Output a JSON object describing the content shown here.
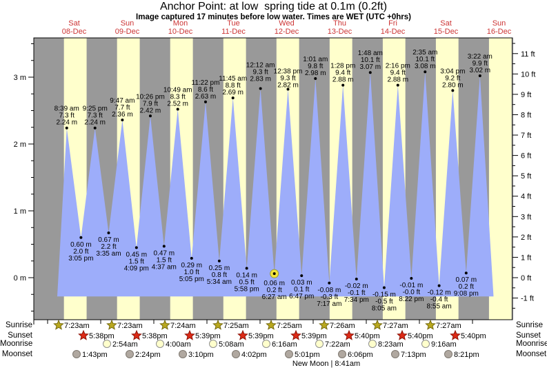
{
  "chart_data": {
    "type": "area",
    "title": "Anchor Point: at low  spring tide at 0.1m (0.2ft)",
    "subtitle": "Image captured 17 minutes before low water. Times are WET (UTC +0hrs)",
    "y_axis_left_unit": "m",
    "y_axis_right_unit": "ft",
    "y_ticks_m": [
      0,
      1,
      2,
      3
    ],
    "y_ticks_ft": [
      -1,
      0,
      1,
      2,
      3,
      4,
      5,
      6,
      7,
      8,
      9,
      10,
      11
    ],
    "ylim_m": [
      -0.65,
      3.55
    ],
    "grid": false,
    "days": [
      {
        "name": "Sat",
        "date": "08-Dec"
      },
      {
        "name": "Sun",
        "date": "09-Dec"
      },
      {
        "name": "Mon",
        "date": "10-Dec"
      },
      {
        "name": "Tue",
        "date": "11-Dec"
      },
      {
        "name": "Wed",
        "date": "12-Dec"
      },
      {
        "name": "Thu",
        "date": "13-Dec"
      },
      {
        "name": "Fri",
        "date": "14-Dec"
      },
      {
        "name": "Sat",
        "date": "15-Dec"
      },
      {
        "name": "Sun",
        "date": "16-Dec"
      }
    ],
    "tide_events": [
      {
        "type": "high",
        "hour": 8.65,
        "height_m": 2.24,
        "time": "8:39 am",
        "ft": "7.3 ft",
        "m": "2.24 m"
      },
      {
        "type": "low",
        "hour": 15.08,
        "height_m": 0.6,
        "time": "3:05 pm",
        "ft": "2.0 ft",
        "m": "0.60 m"
      },
      {
        "type": "high",
        "hour": 21.42,
        "height_m": 2.24,
        "time": "9:25 pm",
        "ft": "7.3 ft",
        "m": "2.24 m"
      },
      {
        "type": "low",
        "hour": 27.58,
        "height_m": 0.67,
        "time": "3:35 am",
        "ft": "2.2 ft",
        "m": "0.67 m"
      },
      {
        "type": "high",
        "hour": 33.78,
        "height_m": 2.36,
        "time": "9:47 am",
        "ft": "7.7 ft",
        "m": "2.36 m"
      },
      {
        "type": "low",
        "hour": 40.15,
        "height_m": 0.45,
        "time": "4:09 pm",
        "ft": "1.5 ft",
        "m": "0.45 m"
      },
      {
        "type": "high",
        "hour": 46.43,
        "height_m": 2.42,
        "time": "10:26 pm",
        "ft": "7.9 ft",
        "m": "2.42 m"
      },
      {
        "type": "low",
        "hour": 52.62,
        "height_m": 0.47,
        "time": "4:37 am",
        "ft": "1.5 ft",
        "m": "0.47 m"
      },
      {
        "type": "high",
        "hour": 58.82,
        "height_m": 2.52,
        "time": "10:49 am",
        "ft": "8.3 ft",
        "m": "2.52 m"
      },
      {
        "type": "low",
        "hour": 65.08,
        "height_m": 0.29,
        "time": "5:05 pm",
        "ft": "1.0 ft",
        "m": "0.29 m"
      },
      {
        "type": "high",
        "hour": 71.37,
        "height_m": 2.63,
        "time": "11:22 pm",
        "ft": "8.6 ft",
        "m": "2.63 m"
      },
      {
        "type": "low",
        "hour": 77.57,
        "height_m": 0.25,
        "time": "5:34 am",
        "ft": "0.8 ft",
        "m": "0.25 m"
      },
      {
        "type": "high",
        "hour": 83.75,
        "height_m": 2.69,
        "time": "11:45 am",
        "ft": "8.8 ft",
        "m": "2.69 m"
      },
      {
        "type": "low",
        "hour": 89.97,
        "height_m": 0.14,
        "time": "5:58 pm",
        "ft": "0.5 ft",
        "m": "0.14 m"
      },
      {
        "type": "high",
        "hour": 96.2,
        "height_m": 2.83,
        "time": "12:12 am",
        "ft": "9.3 ft",
        "m": "2.83 m",
        "label_dy": -6
      },
      {
        "type": "low",
        "hour": 102.45,
        "height_m": 0.06,
        "time": "6:27 am",
        "ft": "0.2 ft",
        "m": "0.06 m",
        "current": true,
        "label_dy": 4
      },
      {
        "type": "high",
        "hour": 108.63,
        "height_m": 2.82,
        "time": "12:38 pm",
        "ft": "9.3 ft",
        "m": "2.82 m",
        "label_dy": 2
      },
      {
        "type": "low",
        "hour": 114.78,
        "height_m": 0.03,
        "time": "6:47 pm",
        "ft": "0.1 ft",
        "m": "0.03 m"
      },
      {
        "type": "high",
        "hour": 121.02,
        "height_m": 2.98,
        "time": "1:01 am",
        "ft": "9.8 ft",
        "m": "2.98 m"
      },
      {
        "type": "low",
        "hour": 127.28,
        "height_m": -0.08,
        "time": "7:17 am",
        "ft": "-0.3 ft",
        "m": "-0.08 m"
      },
      {
        "type": "high",
        "hour": 133.47,
        "height_m": 2.88,
        "time": "1:28 pm",
        "ft": "9.4 ft",
        "m": "2.88 m"
      },
      {
        "type": "low",
        "hour": 139.57,
        "height_m": -0.02,
        "time": "7:34 pm",
        "ft": "-0.1 ft",
        "m": "-0.02 m"
      },
      {
        "type": "high",
        "hour": 145.8,
        "height_m": 3.07,
        "time": "1:48 am",
        "ft": "10.1 ft",
        "m": "3.07 m"
      },
      {
        "type": "low",
        "hour": 152.08,
        "height_m": -0.15,
        "time": "8:05 am",
        "ft": "-0.5 ft",
        "m": "-0.15 m"
      },
      {
        "type": "high",
        "hour": 158.27,
        "height_m": 2.88,
        "time": "2:16 pm",
        "ft": "9.4 ft",
        "m": "2.88 m"
      },
      {
        "type": "low",
        "hour": 164.37,
        "height_m": -0.01,
        "time": "8:22 pm",
        "ft": "-0.0 ft",
        "m": "-0.01 m"
      },
      {
        "type": "high",
        "hour": 170.58,
        "height_m": 3.08,
        "time": "2:35 am",
        "ft": "10.1 ft",
        "m": "3.08 m"
      },
      {
        "type": "low",
        "hour": 176.92,
        "height_m": -0.12,
        "time": "8:55 am",
        "ft": "-0.4 ft",
        "m": "-0.12 m"
      },
      {
        "type": "high",
        "hour": 183.07,
        "height_m": 2.8,
        "time": "3:04 pm",
        "ft": "9.2 ft",
        "m": "2.80 m"
      },
      {
        "type": "low",
        "hour": 189.13,
        "height_m": 0.07,
        "time": "9:08 pm",
        "ft": "0.2 ft",
        "m": "0.07 m"
      },
      {
        "type": "high",
        "hour": 195.37,
        "height_m": 3.02,
        "time": "3:22 am",
        "ft": "9.9 ft",
        "m": "3.02 m"
      }
    ],
    "curve_start_hour": 4.36,
    "curve_end_hour": 201.5,
    "baseline_m": -0.28
  },
  "astro": {
    "row_labels": {
      "sunrise": "Sunrise",
      "sunset": "Sunset",
      "moonrise": "Moonrise",
      "moonset": "Moonset"
    },
    "sunrise": [
      {
        "day": 0,
        "time": "7:23am"
      },
      {
        "day": 1,
        "time": "7:23am"
      },
      {
        "day": 2,
        "time": "7:24am"
      },
      {
        "day": 3,
        "time": "7:25am"
      },
      {
        "day": 4,
        "time": "7:25am"
      },
      {
        "day": 5,
        "time": "7:26am"
      },
      {
        "day": 6,
        "time": "7:27am"
      },
      {
        "day": 7,
        "time": "7:27am"
      }
    ],
    "sunset": [
      {
        "day": 0,
        "time": "5:38pm"
      },
      {
        "day": 1,
        "time": "5:38pm"
      },
      {
        "day": 2,
        "time": "5:39pm"
      },
      {
        "day": 3,
        "time": "5:39pm"
      },
      {
        "day": 4,
        "time": "5:39pm"
      },
      {
        "day": 5,
        "time": "5:40pm"
      },
      {
        "day": 6,
        "time": "5:40pm"
      },
      {
        "day": 7,
        "time": "5:40pm"
      }
    ],
    "moonrise": [
      {
        "day": 1,
        "time": "2:54am"
      },
      {
        "day": 2,
        "time": "4:00am"
      },
      {
        "day": 3,
        "time": "5:08am"
      },
      {
        "day": 4,
        "time": "6:16am"
      },
      {
        "day": 5,
        "time": "7:22am"
      },
      {
        "day": 6,
        "time": "8:23am"
      },
      {
        "day": 7,
        "time": "9:16am"
      }
    ],
    "moonset": [
      {
        "day": 0,
        "time": "1:43pm"
      },
      {
        "day": 1,
        "time": "2:24pm"
      },
      {
        "day": 2,
        "time": "3:10pm"
      },
      {
        "day": 3,
        "time": "4:02pm"
      },
      {
        "day": 4,
        "time": "5:01pm"
      },
      {
        "day": 5,
        "time": "6:06pm"
      },
      {
        "day": 6,
        "time": "7:13pm"
      },
      {
        "day": 7,
        "time": "8:21pm"
      }
    ],
    "moon_phase": "New Moon | 8:41am"
  },
  "colors": {
    "night_band": "#999999",
    "day_band": "#ffffcc",
    "tide_fill": "#9dadfa",
    "day_label": "#cc3333",
    "axis": "#000000",
    "text": "#000000",
    "sunrise_star": "#b9a81e",
    "sunrise_star_edge": "#756a10",
    "sunset_star": "#dd2a16",
    "sunset_star_edge": "#8c1408",
    "moonrise_fill": "#ffffcc",
    "moonrise_edge": "#8f8f8f",
    "moonset_fill": "#b0a8a0",
    "moonset_edge": "#7e7870",
    "marker_fill": "#f2e43c",
    "marker_edge": "#9a9a30"
  }
}
